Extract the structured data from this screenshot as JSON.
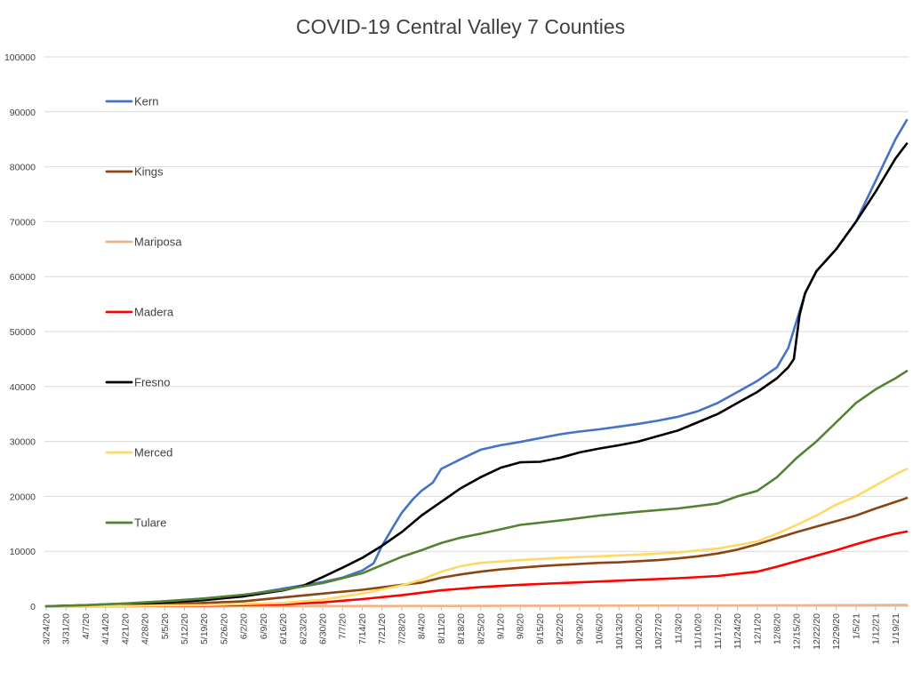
{
  "chart_data": {
    "type": "line",
    "title": "COVID-19 Central Valley 7 Counties",
    "ylim": [
      0,
      100000
    ],
    "y_ticks": [
      0,
      10000,
      20000,
      30000,
      40000,
      50000,
      60000,
      70000,
      80000,
      90000,
      100000
    ],
    "y_tick_labels": [
      "0",
      "10000",
      "20000",
      "30000",
      "40000",
      "50000",
      "60000",
      "70000",
      "80000",
      "90000",
      "100000"
    ],
    "x_tick_labels": [
      "3/24/20",
      "3/31/20",
      "4/7/20",
      "4/14/20",
      "4/21/20",
      "4/28/20",
      "5/5/20",
      "5/12/20",
      "5/19/20",
      "5/26/20",
      "6/2/20",
      "6/9/20",
      "6/16/20",
      "6/23/20",
      "6/30/20",
      "7/7/20",
      "7/14/20",
      "7/21/20",
      "7/28/20",
      "8/4/20",
      "8/11/20",
      "8/18/20",
      "8/25/20",
      "9/1/20",
      "9/8/20",
      "9/15/20",
      "9/22/20",
      "9/29/20",
      "10/6/20",
      "10/13/20",
      "10/20/20",
      "10/27/20",
      "11/3/20",
      "11/10/20",
      "11/17/20",
      "11/24/20",
      "12/1/20",
      "12/8/20",
      "12/15/20",
      "12/22/20",
      "12/29/20",
      "1/5/21",
      "1/12/21",
      "1/19/21"
    ],
    "x_last_label": "1/19/21",
    "grid": true,
    "legend_position": "left-inside",
    "series": [
      {
        "name": "Kern",
        "color": "#4472c4",
        "x": [
          "3/24/20",
          "4/7/20",
          "4/21/20",
          "5/5/20",
          "5/19/20",
          "6/2/20",
          "6/16/20",
          "6/30/20",
          "7/7/20",
          "7/14/20",
          "7/18/20",
          "7/21/20",
          "7/25/20",
          "7/28/20",
          "8/1/20",
          "8/4/20",
          "8/8/20",
          "8/11/20",
          "8/18/20",
          "8/25/20",
          "9/1/20",
          "9/8/20",
          "9/15/20",
          "9/22/20",
          "9/29/20",
          "10/6/20",
          "10/13/20",
          "10/20/20",
          "10/27/20",
          "11/3/20",
          "11/10/20",
          "11/17/20",
          "11/24/20",
          "12/1/20",
          "12/8/20",
          "12/12/20",
          "12/15/20",
          "12/18/20",
          "12/22/20",
          "12/29/20",
          "1/5/21",
          "1/12/21",
          "1/19/21",
          "1/23/21"
        ],
        "y": [
          0,
          200,
          500,
          900,
          1400,
          2000,
          3200,
          4400,
          5200,
          6500,
          7800,
          11000,
          14500,
          17000,
          19500,
          21000,
          22500,
          25000,
          26800,
          28500,
          29300,
          29900,
          30600,
          31300,
          31800,
          32200,
          32700,
          33200,
          33800,
          34500,
          35500,
          37000,
          39000,
          41000,
          43500,
          47000,
          52000,
          57000,
          61000,
          65000,
          70000,
          77500,
          85000,
          88500
        ]
      },
      {
        "name": "Kings",
        "color": "#8b4513",
        "x": [
          "3/24/20",
          "4/7/20",
          "4/21/20",
          "5/5/20",
          "5/19/20",
          "6/2/20",
          "6/16/20",
          "6/30/20",
          "7/14/20",
          "7/28/20",
          "8/4/20",
          "8/8/20",
          "8/11/20",
          "8/18/20",
          "8/25/20",
          "9/1/20",
          "9/8/20",
          "9/15/20",
          "9/22/20",
          "9/29/20",
          "10/6/20",
          "10/13/20",
          "10/20/20",
          "10/27/20",
          "11/3/20",
          "11/10/20",
          "11/17/20",
          "11/24/20",
          "12/1/20",
          "12/8/20",
          "12/15/20",
          "12/22/20",
          "12/29/20",
          "1/5/21",
          "1/12/21",
          "1/19/21",
          "1/23/21"
        ],
        "y": [
          0,
          100,
          200,
          400,
          600,
          900,
          1600,
          2300,
          3000,
          3900,
          4300,
          4800,
          5200,
          5800,
          6300,
          6700,
          7000,
          7300,
          7500,
          7700,
          7900,
          8000,
          8200,
          8400,
          8700,
          9100,
          9600,
          10300,
          11300,
          12400,
          13500,
          14500,
          15500,
          16500,
          17800,
          19000,
          19700
        ]
      },
      {
        "name": "Mariposa",
        "color": "#f4b183",
        "x": [
          "3/24/20",
          "6/2/20",
          "9/1/20",
          "12/1/20",
          "1/23/21"
        ],
        "y": [
          0,
          20,
          60,
          140,
          230
        ]
      },
      {
        "name": "Madera",
        "color": "#ff0000",
        "x": [
          "3/24/20",
          "4/21/20",
          "5/19/20",
          "6/16/20",
          "6/30/20",
          "7/14/20",
          "7/28/20",
          "8/11/20",
          "8/25/20",
          "9/8/20",
          "9/22/20",
          "10/6/20",
          "10/20/20",
          "11/3/20",
          "11/17/20",
          "12/1/20",
          "12/8/20",
          "12/15/20",
          "12/22/20",
          "12/29/20",
          "1/5/21",
          "1/12/21",
          "1/19/21",
          "1/23/21"
        ],
        "y": [
          0,
          30,
          120,
          350,
          700,
          1300,
          2000,
          2900,
          3500,
          3900,
          4200,
          4500,
          4800,
          5100,
          5500,
          6300,
          7200,
          8200,
          9200,
          10200,
          11300,
          12300,
          13200,
          13600
        ]
      },
      {
        "name": "Fresno",
        "color": "#000000",
        "x": [
          "3/24/20",
          "4/7/20",
          "4/21/20",
          "5/5/20",
          "5/19/20",
          "6/2/20",
          "6/16/20",
          "6/23/20",
          "6/30/20",
          "7/7/20",
          "7/14/20",
          "7/21/20",
          "7/28/20",
          "8/4/20",
          "8/11/20",
          "8/18/20",
          "8/25/20",
          "9/1/20",
          "9/8/20",
          "9/15/20",
          "9/22/20",
          "9/29/20",
          "10/6/20",
          "10/13/20",
          "10/20/20",
          "10/27/20",
          "11/3/20",
          "11/10/20",
          "11/17/20",
          "11/24/20",
          "12/1/20",
          "12/8/20",
          "12/12/20",
          "12/14/20",
          "12/16/20",
          "12/18/20",
          "12/22/20",
          "12/29/20",
          "1/5/21",
          "1/12/21",
          "1/19/21",
          "1/23/21"
        ],
        "y": [
          0,
          150,
          350,
          700,
          1100,
          1800,
          2900,
          3700,
          5300,
          7000,
          8800,
          11000,
          13500,
          16500,
          19000,
          21500,
          23500,
          25200,
          26200,
          26300,
          27000,
          28000,
          28700,
          29300,
          30000,
          31000,
          32000,
          33500,
          35000,
          37000,
          39000,
          41500,
          43500,
          45000,
          53000,
          57000,
          61000,
          65000,
          70000,
          75500,
          81500,
          84200
        ]
      },
      {
        "name": "Merced",
        "color": "#ffd966",
        "x": [
          "3/24/20",
          "4/21/20",
          "5/19/20",
          "6/16/20",
          "6/30/20",
          "7/14/20",
          "7/28/20",
          "8/4/20",
          "8/11/20",
          "8/18/20",
          "8/25/20",
          "9/8/20",
          "9/22/20",
          "10/6/20",
          "10/20/20",
          "11/3/20",
          "11/17/20",
          "12/1/20",
          "12/8/20",
          "12/15/20",
          "12/22/20",
          "12/29/20",
          "1/5/21",
          "1/12/21",
          "1/19/21",
          "1/23/21"
        ],
        "y": [
          0,
          50,
          200,
          600,
          1200,
          2300,
          3800,
          4800,
          6300,
          7300,
          7900,
          8400,
          8800,
          9100,
          9400,
          9800,
          10500,
          11800,
          13200,
          14800,
          16500,
          18500,
          20000,
          22000,
          24000,
          25000
        ]
      },
      {
        "name": "Tulare",
        "color": "#548235",
        "x": [
          "3/24/20",
          "4/7/20",
          "4/21/20",
          "5/5/20",
          "5/19/20",
          "6/2/20",
          "6/16/20",
          "6/30/20",
          "7/14/20",
          "7/28/20",
          "8/4/20",
          "8/11/20",
          "8/18/20",
          "8/25/20",
          "9/1/20",
          "9/8/20",
          "9/22/20",
          "10/6/20",
          "10/20/20",
          "11/3/20",
          "11/17/20",
          "11/24/20",
          "12/1/20",
          "12/8/20",
          "12/15/20",
          "12/22/20",
          "12/29/20",
          "1/5/21",
          "1/12/21",
          "1/19/21",
          "1/23/21"
        ],
        "y": [
          0,
          200,
          500,
          900,
          1400,
          2100,
          3000,
          4200,
          6000,
          9000,
          10200,
          11500,
          12500,
          13200,
          14000,
          14800,
          15600,
          16500,
          17200,
          17800,
          18700,
          20000,
          21000,
          23500,
          27000,
          30000,
          33500,
          37000,
          39500,
          41500,
          42800
        ]
      }
    ]
  }
}
